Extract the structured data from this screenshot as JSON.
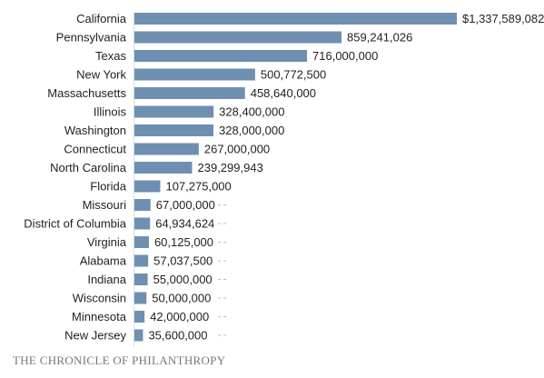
{
  "credit": "THE CHRONICLE OF PHILANTHROPY",
  "chart_data": {
    "type": "bar",
    "orientation": "horizontal",
    "title": "",
    "xlabel": "",
    "ylabel": "",
    "categories": [
      "California",
      "Pennsylvania",
      "Texas",
      "New York",
      "Massachusetts",
      "Illinois",
      "Washington",
      "Connecticut",
      "North Carolina",
      "Florida",
      "Missouri",
      "District of Columbia",
      "Virginia",
      "Alabama",
      "Indiana",
      "Wisconsin",
      "Minnesota",
      "New Jersey"
    ],
    "values": [
      1337589082,
      859241026,
      716000000,
      500772500,
      458640000,
      328400000,
      328000000,
      267000000,
      239299943,
      107275000,
      67000000,
      64934624,
      60125000,
      57037500,
      55000000,
      50000000,
      42000000,
      35600000
    ],
    "value_labels": [
      "$1,337,589,082",
      "859,241,026",
      "716,000,000",
      "500,772,500",
      "458,640,000",
      "328,400,000",
      "328,000,000",
      "267,000,000",
      "239,299,943",
      "107,275,000",
      "67,000,000",
      "64,934,624",
      "60,125,000",
      "57,037,500",
      "55,000,000",
      "50,000,000",
      "42,000,000",
      "35,600,000"
    ],
    "xlim": [
      0,
      1337589082
    ],
    "bar_color": "#6f8fb1",
    "grid": false,
    "legend": "none"
  }
}
